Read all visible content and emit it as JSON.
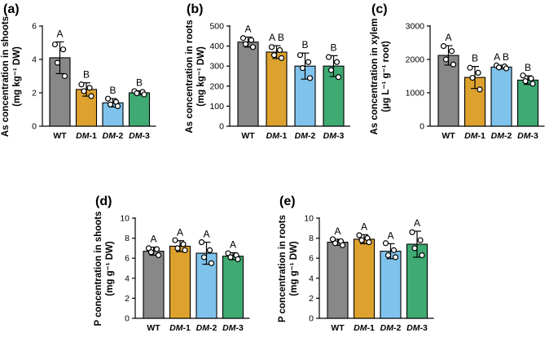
{
  "colors": {
    "WT": "#888888",
    "DM-1": "#DDA22E",
    "DM-2": "#7FC3EC",
    "DM-3": "#3FAA72"
  },
  "chart_data": [
    {
      "panel": "(a)",
      "type": "bar",
      "ylabel_lines": [
        "As concentration in shoots",
        "(mg kg⁻¹ DW)"
      ],
      "ylim": [
        0,
        6
      ],
      "yticks": [
        0,
        2,
        4,
        6
      ],
      "categories": [
        {
          "prefix": "WT",
          "suffix": ""
        },
        {
          "prefix": "DM",
          "suffix": "-1"
        },
        {
          "prefix": "DM",
          "suffix": "-2"
        },
        {
          "prefix": "DM",
          "suffix": "-3"
        }
      ],
      "values": [
        4.1,
        2.2,
        1.4,
        2.0
      ],
      "errors": [
        0.95,
        0.4,
        0.25,
        0.12
      ],
      "points": [
        [
          4.9,
          4.6,
          3.8,
          3.0
        ],
        [
          2.5,
          2.3,
          2.1,
          1.8
        ],
        [
          1.65,
          1.45,
          1.3,
          1.2
        ],
        [
          2.1,
          2.05,
          1.97,
          1.9
        ]
      ],
      "significance": [
        "A",
        "B",
        "B",
        "B"
      ]
    },
    {
      "panel": "(b)",
      "type": "bar",
      "ylabel_lines": [
        "As concentration in roots",
        "(mg kg⁻¹ DW)"
      ],
      "ylim": [
        0,
        500
      ],
      "yticks": [
        0,
        100,
        200,
        300,
        400,
        500
      ],
      "categories": [
        {
          "prefix": "WT",
          "suffix": ""
        },
        {
          "prefix": "DM",
          "suffix": "-1"
        },
        {
          "prefix": "DM",
          "suffix": "-2"
        },
        {
          "prefix": "DM",
          "suffix": "-3"
        }
      ],
      "values": [
        420,
        370,
        300,
        300
      ],
      "errors": [
        25,
        32,
        65,
        52
      ],
      "points": [
        [
          440,
          430,
          410,
          395
        ],
        [
          395,
          380,
          355,
          340
        ],
        [
          355,
          320,
          290,
          240
        ],
        [
          345,
          320,
          280,
          245
        ]
      ],
      "significance": [
        "A",
        "A B",
        "B",
        "B"
      ]
    },
    {
      "panel": "(c)",
      "type": "bar",
      "ylabel_lines": [
        "As concentration in xylem",
        "(μg L⁻¹ g⁻¹ root)"
      ],
      "ylim": [
        0,
        3000
      ],
      "yticks": [
        0,
        1000,
        2000,
        3000
      ],
      "categories": [
        {
          "prefix": "WT",
          "suffix": ""
        },
        {
          "prefix": "DM",
          "suffix": "-1"
        },
        {
          "prefix": "DM",
          "suffix": "-2"
        },
        {
          "prefix": "DM",
          "suffix": "-3"
        }
      ],
      "values": [
        2120,
        1460,
        1770,
        1380
      ],
      "errors": [
        290,
        330,
        55,
        130
      ],
      "points": [
        [
          2400,
          2250,
          2000,
          1850
        ],
        [
          1750,
          1600,
          1450,
          1100
        ],
        [
          1820,
          1790,
          1760,
          1730
        ],
        [
          1520,
          1430,
          1350,
          1270
        ]
      ],
      "significance": [
        "A",
        "B",
        "A B",
        "B"
      ]
    },
    {
      "panel": "(d)",
      "type": "bar",
      "ylabel_lines": [
        "P concentration in shoots",
        "(mg g⁻¹ DW)"
      ],
      "ylim": [
        0,
        10
      ],
      "yticks": [
        0,
        2,
        4,
        6,
        8,
        10
      ],
      "categories": [
        {
          "prefix": "WT",
          "suffix": ""
        },
        {
          "prefix": "DM",
          "suffix": "-1"
        },
        {
          "prefix": "DM",
          "suffix": "-2"
        },
        {
          "prefix": "DM",
          "suffix": "-3"
        }
      ],
      "values": [
        6.7,
        7.2,
        6.5,
        6.2
      ],
      "errors": [
        0.4,
        0.55,
        1.1,
        0.35
      ],
      "points": [
        [
          7.0,
          6.9,
          6.6,
          6.3
        ],
        [
          7.8,
          7.4,
          7.0,
          6.8
        ],
        [
          7.6,
          6.8,
          6.1,
          5.5
        ],
        [
          6.5,
          6.3,
          6.1,
          5.9
        ]
      ],
      "significance": [
        "A",
        "A",
        "A",
        "A"
      ]
    },
    {
      "panel": "(e)",
      "type": "bar",
      "ylabel_lines": [
        "P concentration in roots",
        "(mg g⁻¹ DW)"
      ],
      "ylim": [
        0,
        10
      ],
      "yticks": [
        0,
        2,
        4,
        6,
        8,
        10
      ],
      "categories": [
        {
          "prefix": "WT",
          "suffix": ""
        },
        {
          "prefix": "DM",
          "suffix": "-1"
        },
        {
          "prefix": "DM",
          "suffix": "-2"
        },
        {
          "prefix": "DM",
          "suffix": "-3"
        }
      ],
      "values": [
        7.6,
        7.9,
        6.7,
        7.4
      ],
      "errors": [
        0.3,
        0.45,
        0.75,
        1.3
      ],
      "points": [
        [
          7.9,
          7.7,
          7.5,
          7.3
        ],
        [
          8.3,
          8.0,
          7.8,
          7.6
        ],
        [
          7.5,
          6.8,
          6.3,
          6.1
        ],
        [
          8.6,
          7.8,
          7.0,
          6.3
        ]
      ],
      "significance": [
        "A",
        "A",
        "A",
        "A"
      ]
    }
  ]
}
